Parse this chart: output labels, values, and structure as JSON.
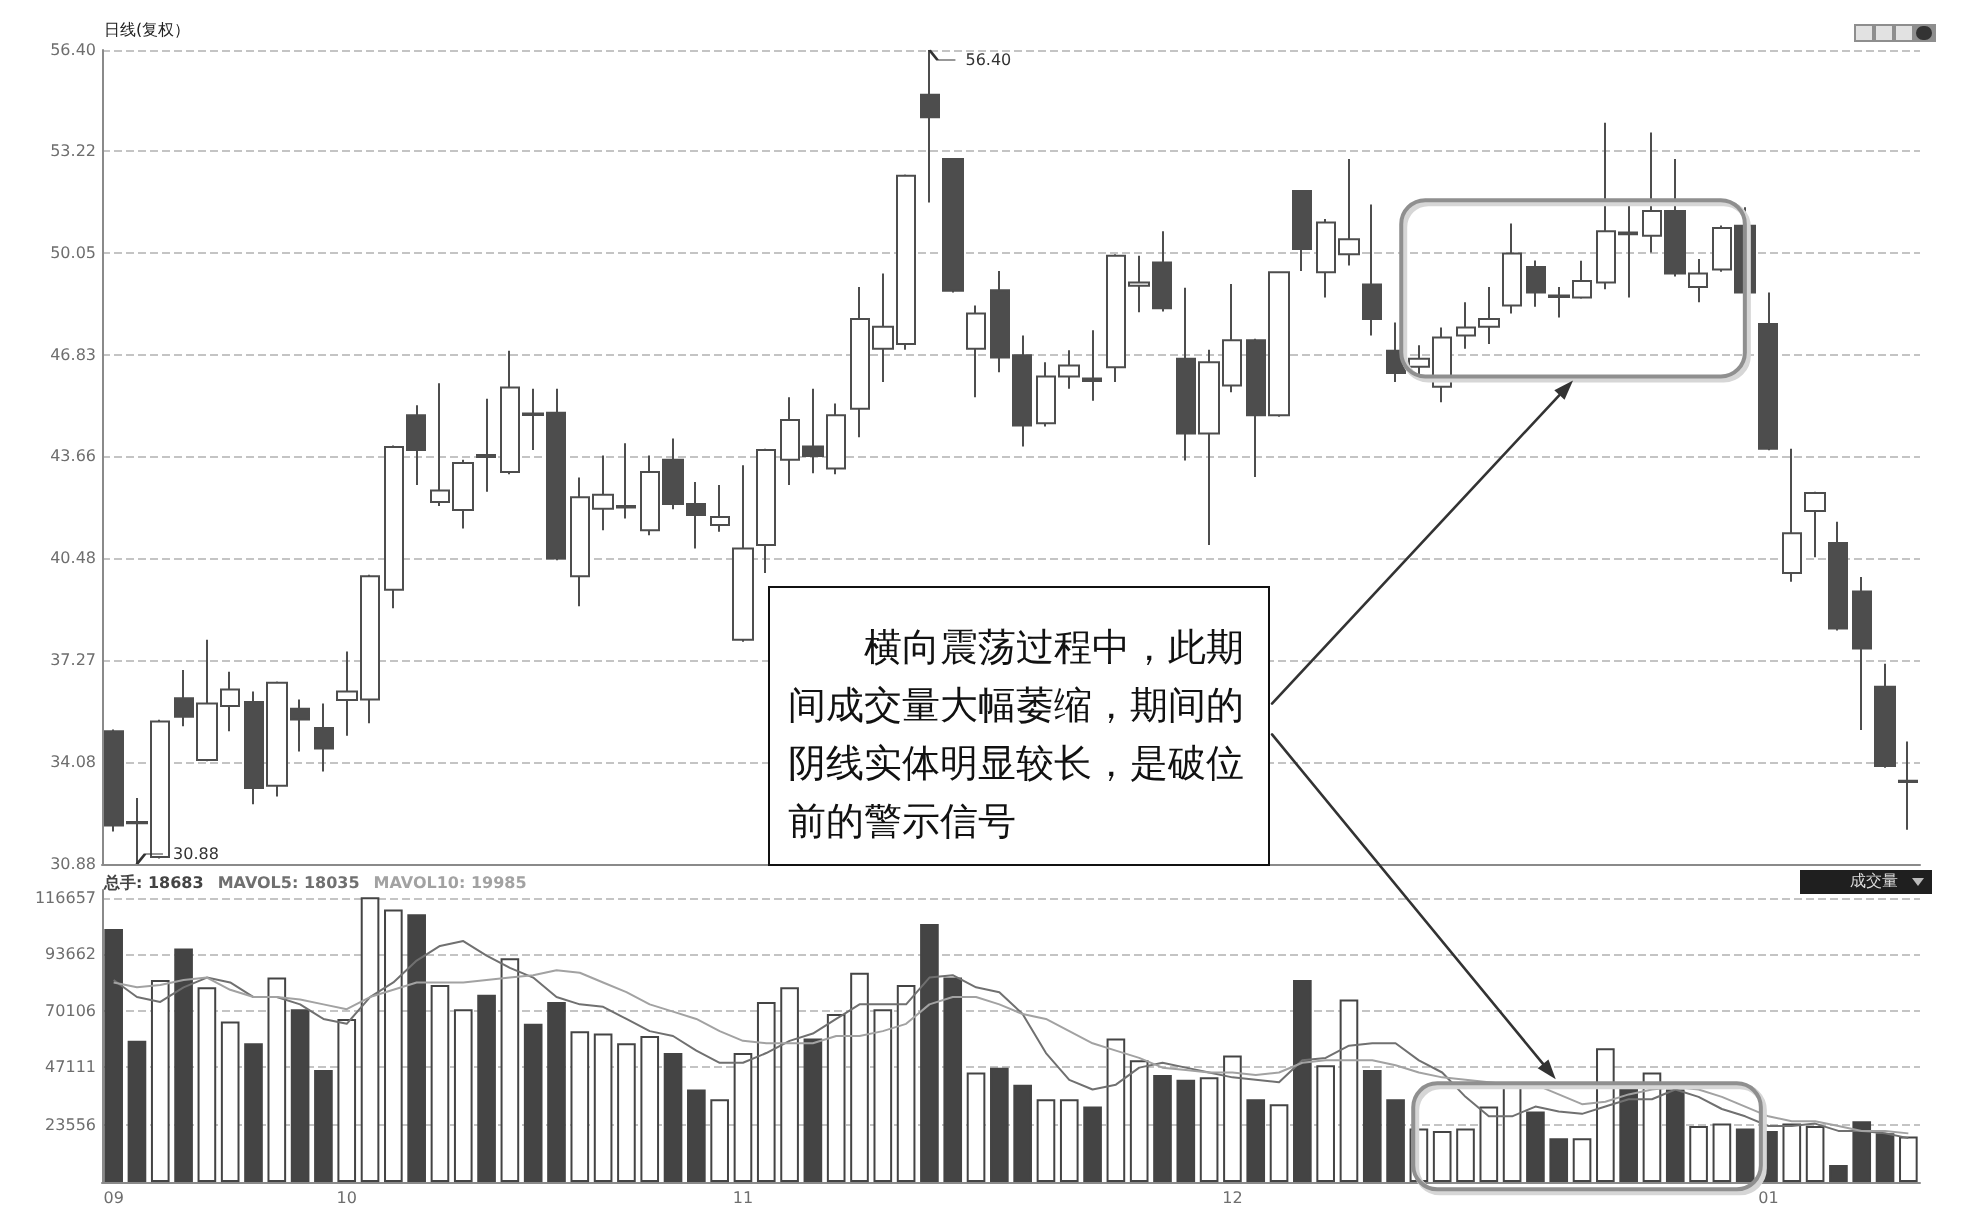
{
  "chart_data": [
    {
      "type": "candlestick",
      "title": "日线(复权）",
      "color": "#4d4d4d",
      "tick_labels": "y",
      "grid": "y",
      "categories": [
        "09",
        null,
        null,
        null,
        null,
        null,
        null,
        null,
        null,
        null,
        "10",
        null,
        null,
        null,
        null,
        null,
        null,
        null,
        null,
        null,
        null,
        null,
        null,
        null,
        null,
        null,
        null,
        "11",
        null,
        null,
        null,
        null,
        null,
        null,
        null,
        null,
        null,
        null,
        null,
        null,
        null,
        null,
        null,
        null,
        null,
        null,
        null,
        null,
        "12",
        null,
        null,
        null,
        null,
        null,
        null,
        null,
        null,
        null,
        null,
        null,
        null,
        null,
        null,
        null,
        null,
        null,
        null,
        null,
        null,
        null,
        null,
        "01",
        null,
        null,
        null,
        null,
        null,
        null
      ],
      "ohlc": [
        [
          35.04,
          35.1,
          31.9,
          32.09
        ],
        [
          32.2,
          32.95,
          30.88,
          32.16
        ],
        [
          31.1,
          35.4,
          31.05,
          35.35
        ],
        [
          36.08,
          36.96,
          35.2,
          35.5
        ],
        [
          34.14,
          37.91,
          34.1,
          35.91
        ],
        [
          35.83,
          36.91,
          35.04,
          36.35
        ],
        [
          35.96,
          36.29,
          32.75,
          33.26
        ],
        [
          33.33,
          36.6,
          33.0,
          36.56
        ],
        [
          35.75,
          36.04,
          34.41,
          35.41
        ],
        [
          35.14,
          35.91,
          33.78,
          34.5
        ],
        [
          36.02,
          37.54,
          34.9,
          36.29
        ],
        [
          36.04,
          39.95,
          35.29,
          39.9
        ],
        [
          39.48,
          44.0,
          38.9,
          43.95
        ],
        [
          44.95,
          45.26,
          42.76,
          43.86
        ],
        [
          42.23,
          45.95,
          42.1,
          42.59
        ],
        [
          41.98,
          43.55,
          41.4,
          43.45
        ],
        [
          43.7,
          45.47,
          42.55,
          43.64
        ],
        [
          43.17,
          46.97,
          43.1,
          45.82
        ],
        [
          45.0,
          45.78,
          43.86,
          44.96
        ],
        [
          45.03,
          45.78,
          40.4,
          40.46
        ],
        [
          39.9,
          43.0,
          38.96,
          42.38
        ],
        [
          42.02,
          43.69,
          41.34,
          42.46
        ],
        [
          42.06,
          44.07,
          41.71,
          42.1
        ],
        [
          41.34,
          43.69,
          41.19,
          43.17
        ],
        [
          43.55,
          44.22,
          42.0,
          42.17
        ],
        [
          42.17,
          42.86,
          40.77,
          41.82
        ],
        [
          41.51,
          42.76,
          41.3,
          41.76
        ],
        [
          37.91,
          43.38,
          37.85,
          40.77
        ],
        [
          40.88,
          43.9,
          40.0,
          43.86
        ],
        [
          43.55,
          45.51,
          42.76,
          44.8
        ],
        [
          43.97,
          45.78,
          43.13,
          43.67
        ],
        [
          43.28,
          45.32,
          43.1,
          44.95
        ],
        [
          45.15,
          48.97,
          44.26,
          47.97
        ],
        [
          47.03,
          49.39,
          45.99,
          47.72
        ],
        [
          47.18,
          52.5,
          47.0,
          52.46
        ],
        [
          55.0,
          56.4,
          51.62,
          54.29
        ],
        [
          52.98,
          53.0,
          48.8,
          48.85
        ],
        [
          47.03,
          48.39,
          45.51,
          48.14
        ],
        [
          48.87,
          49.47,
          46.3,
          46.76
        ],
        [
          46.83,
          47.45,
          43.97,
          44.63
        ],
        [
          44.7,
          46.61,
          44.6,
          46.16
        ],
        [
          46.16,
          46.99,
          45.78,
          46.51
        ],
        [
          46.1,
          47.61,
          45.4,
          46.02
        ],
        [
          46.45,
          50.0,
          45.99,
          49.95
        ],
        [
          49.01,
          49.95,
          48.18,
          49.11
        ],
        [
          49.74,
          50.72,
          48.2,
          48.3
        ],
        [
          46.72,
          48.95,
          43.53,
          44.38
        ],
        [
          44.38,
          47.0,
          40.88,
          46.61
        ],
        [
          45.88,
          49.06,
          45.67,
          47.3
        ],
        [
          47.3,
          47.35,
          43.01,
          44.95
        ],
        [
          44.95,
          49.45,
          44.9,
          49.43
        ],
        [
          51.98,
          52.0,
          49.47,
          50.16
        ],
        [
          49.43,
          51.1,
          48.64,
          50.99
        ],
        [
          50.0,
          52.98,
          49.64,
          50.47
        ],
        [
          49.05,
          51.56,
          47.45,
          47.97
        ],
        [
          46.97,
          47.86,
          45.99,
          46.27
        ],
        [
          46.47,
          47.14,
          46.2,
          46.72
        ],
        [
          45.84,
          47.7,
          45.36,
          47.39
        ],
        [
          47.45,
          48.49,
          47.03,
          47.7
        ],
        [
          47.72,
          48.97,
          47.18,
          47.97
        ],
        [
          48.39,
          50.96,
          48.14,
          50.02
        ],
        [
          49.6,
          49.8,
          48.35,
          48.8
        ],
        [
          48.7,
          48.97,
          48.01,
          48.66
        ],
        [
          48.64,
          49.79,
          48.6,
          49.16
        ],
        [
          49.11,
          54.12,
          48.9,
          50.72
        ],
        [
          50.68,
          51.62,
          48.64,
          50.62
        ],
        [
          50.58,
          53.81,
          50.05,
          51.35
        ],
        [
          51.35,
          52.98,
          49.3,
          49.39
        ],
        [
          48.97,
          49.85,
          48.49,
          49.39
        ],
        [
          49.52,
          50.9,
          49.45,
          50.82
        ],
        [
          50.89,
          51.47,
          48.49,
          48.8
        ],
        [
          47.81,
          48.8,
          43.85,
          43.9
        ],
        [
          40.0,
          43.9,
          39.73,
          41.25
        ],
        [
          41.95,
          42.55,
          40.5,
          42.51
        ],
        [
          40.94,
          41.61,
          38.2,
          38.26
        ],
        [
          39.42,
          39.88,
          35.08,
          37.64
        ],
        [
          36.44,
          37.16,
          33.9,
          33.95
        ],
        [
          33.45,
          34.72,
          31.95,
          33.49
        ]
      ],
      "ylim": [
        30.88,
        56.4
      ],
      "yticks": [
        30.88,
        34.08,
        37.27,
        40.48,
        43.66,
        46.83,
        50.05,
        53.22,
        {
          "value": 56.4,
          "label": "56.40"
        }
      ],
      "annotations": [
        "56.40",
        "30.88",
        "横向震荡过程中，此期间成交量大幅萎缩，期间的阴线实体明显较长，是破位前的警示信号"
      ]
    },
    {
      "type": "bar",
      "ylabel": "成交量",
      "grid": "y",
      "categories": [
        "09",
        null,
        null,
        null,
        null,
        null,
        null,
        null,
        null,
        null,
        "10",
        null,
        null,
        null,
        null,
        null,
        null,
        null,
        null,
        null,
        null,
        null,
        null,
        null,
        null,
        null,
        null,
        "11",
        null,
        null,
        null,
        null,
        null,
        null,
        null,
        null,
        null,
        null,
        null,
        null,
        null,
        null,
        null,
        null,
        null,
        null,
        null,
        null,
        "12",
        null,
        null,
        null,
        null,
        null,
        null,
        null,
        null,
        null,
        null,
        null,
        null,
        null,
        null,
        null,
        null,
        null,
        null,
        null,
        null,
        null,
        null,
        "01",
        null,
        null,
        null,
        null,
        null,
        null
      ],
      "series": [
        {
          "name": "总手: 18683",
          "color": "#444444",
          "colors": [
            "#444444",
            "#444444",
            "#ffffff",
            "#444444",
            "#ffffff",
            "#ffffff",
            "#444444",
            "#ffffff",
            "#444444",
            "#444444",
            "#ffffff",
            "#ffffff",
            "#ffffff",
            "#444444",
            "#ffffff",
            "#ffffff",
            "#444444",
            "#ffffff",
            "#444444",
            "#444444",
            "#ffffff",
            "#ffffff",
            "#ffffff",
            "#ffffff",
            "#444444",
            "#444444",
            "#ffffff",
            "#ffffff",
            "#ffffff",
            "#ffffff",
            "#444444",
            "#ffffff",
            "#ffffff",
            "#ffffff",
            "#ffffff",
            "#444444",
            "#444444",
            "#ffffff",
            "#444444",
            "#444444",
            "#ffffff",
            "#ffffff",
            "#444444",
            "#ffffff",
            "#ffffff",
            "#444444",
            "#444444",
            "#ffffff",
            "#ffffff",
            "#444444",
            "#ffffff",
            "#444444",
            "#ffffff",
            "#ffffff",
            "#444444",
            "#444444",
            "#ffffff",
            "#ffffff",
            "#ffffff",
            "#ffffff",
            "#ffffff",
            "#444444",
            "#444444",
            "#ffffff",
            "#ffffff",
            "#444444",
            "#ffffff",
            "#444444",
            "#ffffff",
            "#ffffff",
            "#444444",
            "#444444",
            "#ffffff",
            "#ffffff",
            "#444444",
            "#444444",
            "#444444",
            "#ffffff"
          ],
          "values": [
            104000,
            58000,
            83000,
            96000,
            80000,
            66000,
            57000,
            84000,
            71000,
            46000,
            67000,
            117000,
            112000,
            110000,
            81000,
            71000,
            77000,
            92000,
            65000,
            74000,
            62000,
            61000,
            57000,
            60000,
            53000,
            38000,
            34000,
            53000,
            74000,
            80000,
            59000,
            69000,
            86000,
            71000,
            81000,
            106000,
            84000,
            45000,
            47000,
            40000,
            34000,
            34000,
            31000,
            59000,
            50000,
            44000,
            42000,
            43000,
            52000,
            34000,
            32000,
            83000,
            48000,
            75000,
            46000,
            34000,
            22000,
            21000,
            22000,
            31000,
            40000,
            29000,
            18000,
            18000,
            55000,
            41000,
            45000,
            38000,
            23000,
            24000,
            22000,
            21000,
            24000,
            23000,
            7000,
            25000,
            20000,
            18683
          ]
        },
        {
          "name": "MAVOL5: 18035",
          "type": "line",
          "color": "#707070",
          "values": [
            83000,
            76000,
            74000,
            80000,
            84000,
            82000,
            76000,
            76000,
            73000,
            67000,
            65000,
            76000,
            82000,
            91000,
            97000,
            99000,
            93000,
            88000,
            84000,
            76000,
            73000,
            72000,
            67000,
            62000,
            60000,
            54000,
            49000,
            49000,
            53000,
            58000,
            61000,
            67000,
            73000,
            73000,
            73000,
            84000,
            85000,
            80000,
            78000,
            69000,
            53000,
            42000,
            38000,
            40000,
            47000,
            49000,
            47000,
            45000,
            43000,
            42000,
            41000,
            50000,
            51000,
            56000,
            57000,
            57000,
            50000,
            45000,
            35000,
            27000,
            27000,
            31000,
            29000,
            28000,
            31000,
            34000,
            34000,
            38000,
            35000,
            30000,
            27000,
            23000,
            23000,
            24000,
            21000,
            21000,
            20000,
            18035
          ]
        },
        {
          "name": "MAVOL10: 19985",
          "type": "line",
          "color": "#a2a2a2",
          "values": [
            82000,
            80000,
            81000,
            83000,
            84000,
            79000,
            76000,
            76000,
            75000,
            73000,
            71000,
            76000,
            79000,
            82000,
            82000,
            82000,
            83000,
            84000,
            85000,
            87000,
            86000,
            82000,
            78000,
            73000,
            70000,
            67000,
            62000,
            58000,
            57000,
            57000,
            57000,
            60000,
            60000,
            62000,
            65000,
            73000,
            76000,
            76000,
            73000,
            69000,
            67000,
            62000,
            57000,
            54000,
            51000,
            47000,
            46000,
            45000,
            45000,
            44000,
            45000,
            49000,
            50000,
            50000,
            50000,
            48000,
            45000,
            43000,
            42000,
            41000,
            40000,
            40000,
            36000,
            32000,
            33000,
            36000,
            38000,
            39000,
            38000,
            35000,
            31000,
            27000,
            25000,
            25000,
            23000,
            21000,
            21000,
            19985
          ]
        }
      ],
      "ylim": [
        0,
        120000
      ],
      "yticks": [
        23556,
        47111,
        70106,
        93662,
        116657
      ]
    }
  ]
}
